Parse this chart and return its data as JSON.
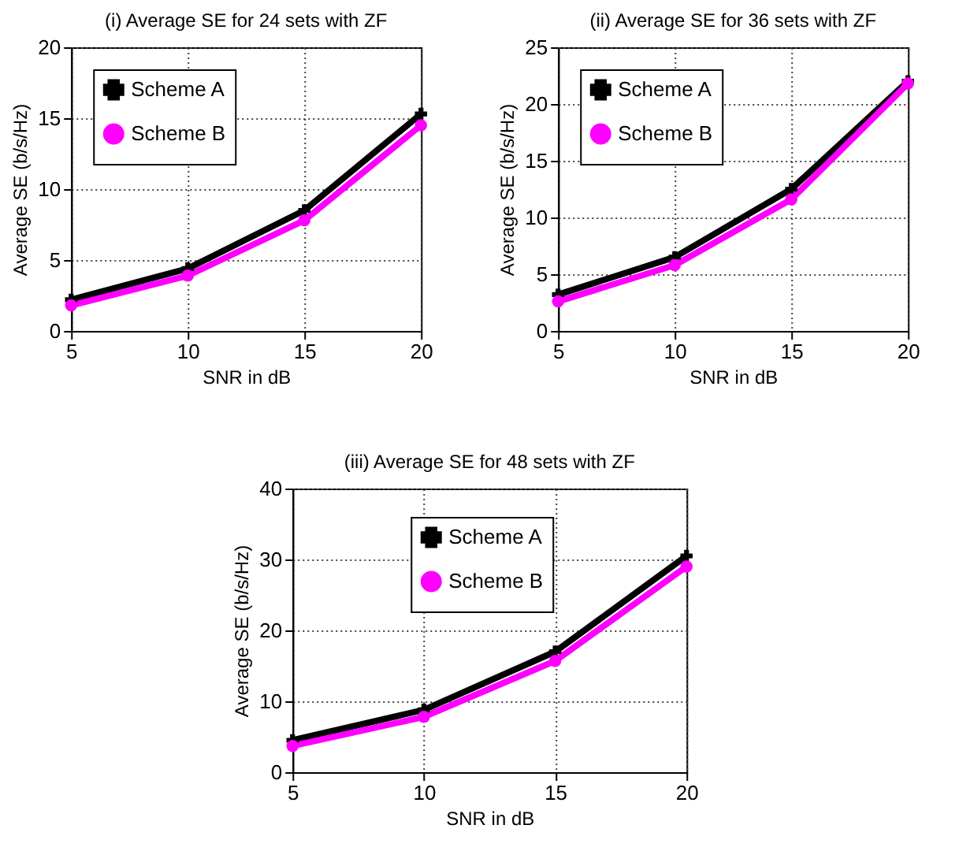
{
  "chart_data": [
    {
      "type": "line",
      "title": "(i) Average SE for 24 sets with ZF",
      "xlabel": "SNR in dB",
      "ylabel": "Average SE (b/s/Hz)",
      "x": [
        5,
        10,
        15,
        20
      ],
      "xlim": [
        5,
        20
      ],
      "xticks": [
        5,
        10,
        15,
        20
      ],
      "ylim": [
        0,
        20
      ],
      "yticks": [
        0,
        5,
        10,
        15,
        20
      ],
      "grid": true,
      "legend": "top left",
      "series": [
        {
          "name": "Scheme A",
          "color": "#000000",
          "marker": "cross",
          "values": [
            2.2,
            4.4,
            8.5,
            15.3
          ]
        },
        {
          "name": "Scheme B",
          "color": "#ff00ff",
          "marker": "circle",
          "values": [
            1.8,
            3.9,
            7.8,
            14.5
          ]
        }
      ]
    },
    {
      "type": "line",
      "title": "(ii) Average SE for 36 sets with ZF",
      "xlabel": "SNR in dB",
      "ylabel": "Average SE (b/s/Hz)",
      "x": [
        5,
        10,
        15,
        20
      ],
      "xlim": [
        5,
        20
      ],
      "xticks": [
        5,
        10,
        15,
        20
      ],
      "ylim": [
        0,
        25
      ],
      "yticks": [
        0,
        5,
        10,
        15,
        20,
        25
      ],
      "grid": true,
      "legend": "top left",
      "series": [
        {
          "name": "Scheme A",
          "color": "#000000",
          "marker": "cross",
          "values": [
            3.2,
            6.5,
            12.5,
            22.0
          ]
        },
        {
          "name": "Scheme B",
          "color": "#ff00ff",
          "marker": "circle",
          "values": [
            2.6,
            5.8,
            11.6,
            21.8
          ]
        }
      ]
    },
    {
      "type": "line",
      "title": "(iii) Average SE for 48 sets with ZF",
      "xlabel": "SNR in dB",
      "ylabel": "Average SE (b/s/Hz)",
      "x": [
        5,
        10,
        15,
        20
      ],
      "xlim": [
        5,
        20
      ],
      "xticks": [
        5,
        10,
        15,
        20
      ],
      "ylim": [
        0,
        40
      ],
      "yticks": [
        0,
        10,
        20,
        30,
        40
      ],
      "grid": true,
      "legend": "top",
      "series": [
        {
          "name": "Scheme A",
          "color": "#000000",
          "marker": "cross",
          "values": [
            4.5,
            8.8,
            17,
            30.5
          ]
        },
        {
          "name": "Scheme B",
          "color": "#ff00ff",
          "marker": "circle",
          "values": [
            3.7,
            7.8,
            15.7,
            29
          ]
        }
      ]
    }
  ]
}
